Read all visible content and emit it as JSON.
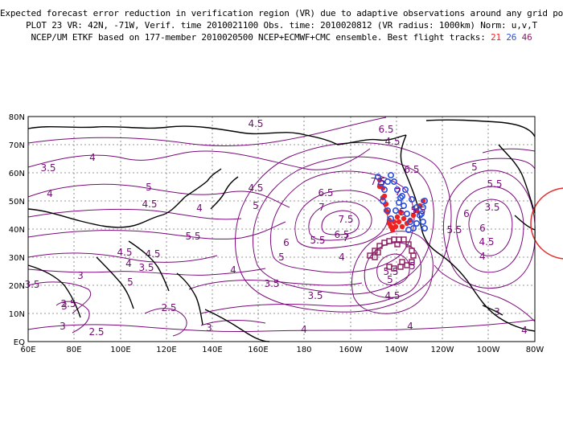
{
  "header": {
    "line1": "Expected forecast error reduction in verification region (VR) due to adaptive observations around any grid point.",
    "line2": "PLOT 23 VR: 42N, -71W, Verif. time 2010021100 Obs. time: 2010020812 (VR radius: 1000km) Norm: u,v,T",
    "line3_prefix": "NCEP/UM ETKF based on 177-member 2010020500 NCEP+ECMWF+CMC ensemble. Best flight tracks: ",
    "track_a": "21",
    "track_b": "26",
    "track_c": "46"
  },
  "axes": {
    "lat_labels": [
      "80N",
      "70N",
      "60N",
      "50N",
      "40N",
      "30N",
      "20N",
      "10N",
      "EQ"
    ],
    "lon_labels": [
      "60E",
      "80E",
      "100E",
      "120E",
      "140E",
      "160E",
      "180",
      "160W",
      "140W",
      "120W",
      "100W",
      "80W"
    ]
  },
  "contour_labels": [
    "4.5",
    "4",
    "3.5",
    "4",
    "5",
    "4.5",
    "4",
    "4.5",
    "5",
    "5.5",
    "4.5",
    "3.5",
    "4",
    "3",
    "3.5",
    "3",
    "2.5",
    "2.5",
    "3",
    "2.5",
    "3",
    "4.5",
    "5",
    "4",
    "3.5",
    "3.5",
    "4",
    "4",
    "6.5",
    "6.5",
    "7",
    "7.5",
    "7",
    "6.5",
    "6",
    "5.5",
    "5",
    "4.5",
    "4",
    "5",
    "5.5",
    "5",
    "6",
    "4.5",
    "4",
    "5.5",
    "3",
    "3.5",
    "4",
    "4.5",
    "5",
    "5.5",
    "5.5",
    "6",
    "6.5",
    "7",
    "7.5",
    "5"
  ],
  "colors": {
    "contour": "#7a0a7a",
    "track_red": "#ee2222",
    "track_blue": "#2a4fd8",
    "track_purple": "#8a1a5e",
    "vr_circle": "#e03030"
  }
}
